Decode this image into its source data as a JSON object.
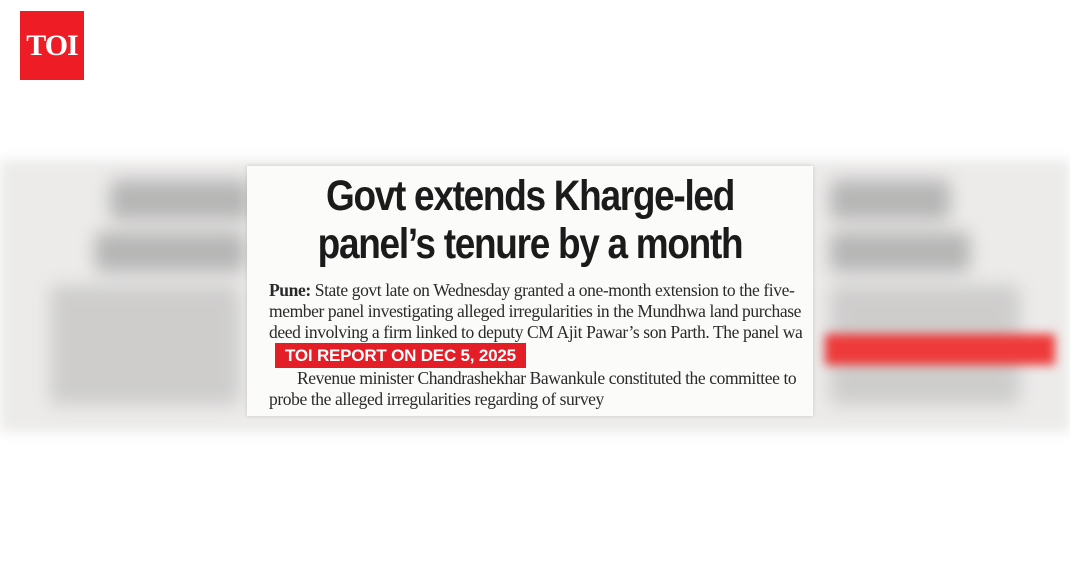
{
  "logo": {
    "text": "TOI",
    "color": "#ee1c25"
  },
  "clipping": {
    "headline_line1": "Govt extends Kharge-led",
    "headline_line2": "panel’s tenure by a month",
    "dateline": "Pune:",
    "paragraph1": "State govt late on Wednesday granted a one-month extension to the five-member panel investigating alleged irregularities in the Mundhwa land purchase deed involving a firm linked to deputy CM Ajit Pawar’s son Parth. The panel wa",
    "paragraph2": "Revenue minister Chandrashekhar Bawankule constituted the committee to probe the alleged irregularities regarding of survey"
  },
  "tag": {
    "text": "TOI REPORT ON DEC 5, 2025",
    "color": "#e41e26"
  }
}
